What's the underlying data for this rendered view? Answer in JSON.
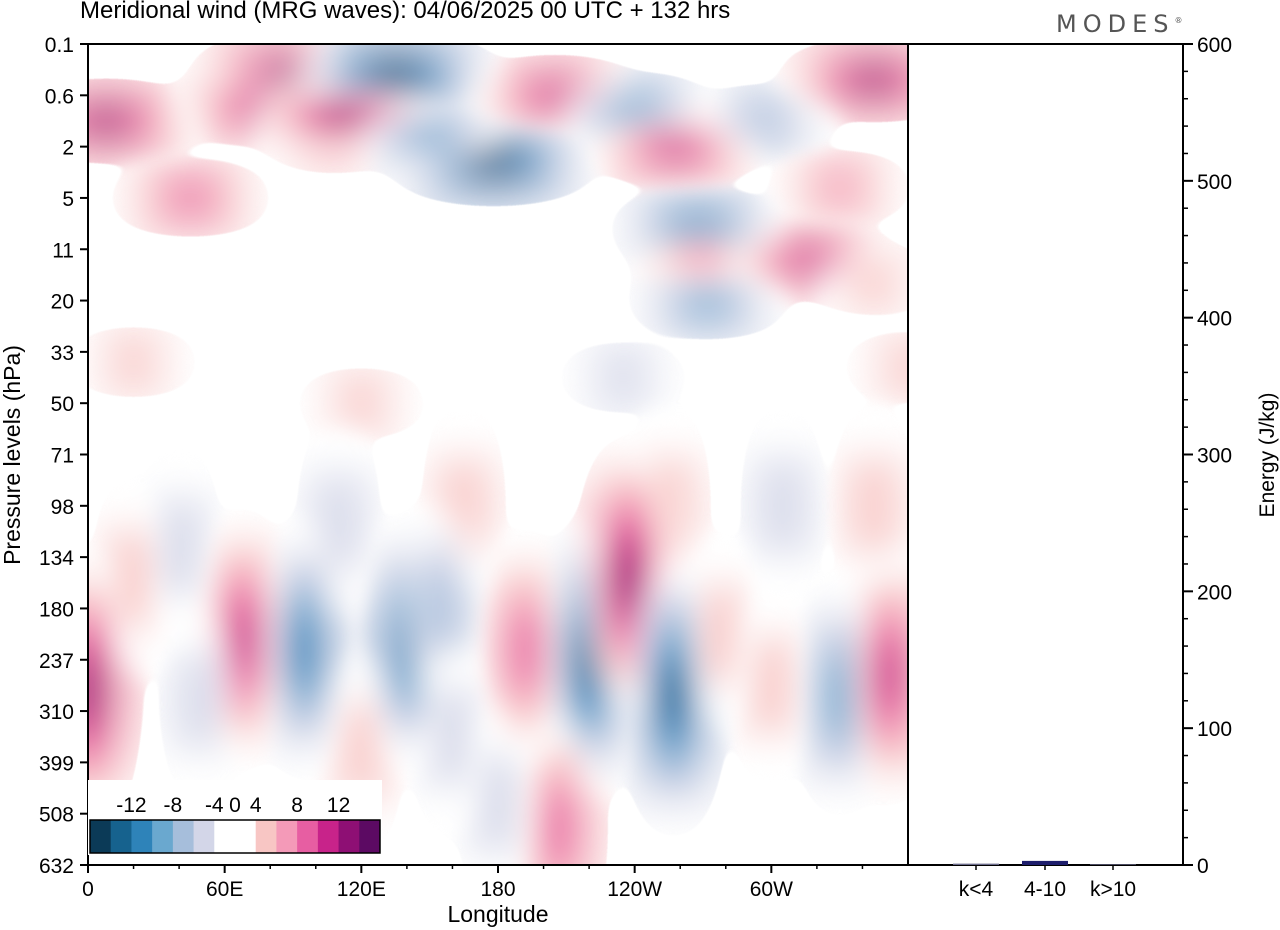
{
  "title": "Meridional wind (MRG waves):  04/06/2025  00 UTC  + 132 hrs",
  "brand": "MODES",
  "brand_mark": "®",
  "chart_data": [
    {
      "type": "heatmap",
      "xlabel": "Longitude",
      "ylabel": "Pressure levels (hPa)",
      "x_ticks": [
        "0",
        "60E",
        "120E",
        "180",
        "120W",
        "60W"
      ],
      "y_ticks": [
        "0.1",
        "0.6",
        "2",
        "5",
        "11",
        "20",
        "33",
        "50",
        "71",
        "98",
        "134",
        "180",
        "237",
        "310",
        "399",
        "508",
        "632"
      ],
      "colorbar": {
        "labels": [
          "-12",
          "-8",
          "-4",
          "0",
          "4",
          "8",
          "12"
        ],
        "levels": [
          -14,
          -12,
          -10,
          -8,
          -6,
          -4,
          -2,
          2,
          4,
          6,
          8,
          10,
          12,
          14
        ],
        "colors": [
          "#0b3a57",
          "#16628e",
          "#2e83b9",
          "#6aa8cf",
          "#a6bedb",
          "#d3d6e8",
          "#ffffff",
          "#ffffff",
          "#f8c6c4",
          "#f49ab8",
          "#e75ea2",
          "#c8238a",
          "#8e0f74",
          "#5c0a63"
        ]
      },
      "features": [
        {
          "lon": 8,
          "lev": 1.5,
          "v": 12
        },
        {
          "lon": 45,
          "lev": 3.0,
          "v": 8
        },
        {
          "lon": 87,
          "lev": 0.6,
          "v": 12
        },
        {
          "lon": 108,
          "lev": 1.8,
          "v": 6
        },
        {
          "lon": 75,
          "lev": 1.2,
          "v": 10
        },
        {
          "lon": 135,
          "lev": 0.6,
          "v": -14
        },
        {
          "lon": 112,
          "lev": 1.4,
          "v": 12
        },
        {
          "lon": 178,
          "lev": 2.3,
          "v": -14
        },
        {
          "lon": 150,
          "lev": 1.8,
          "v": -8
        },
        {
          "lon": 205,
          "lev": 1.0,
          "v": 10
        },
        {
          "lon": 240,
          "lev": 1.3,
          "v": -8
        },
        {
          "lon": 258,
          "lev": 2.0,
          "v": 10
        },
        {
          "lon": 297,
          "lev": 1.5,
          "v": -6
        },
        {
          "lon": 345,
          "lev": 0.7,
          "v": 12
        },
        {
          "lon": 330,
          "lev": 2.8,
          "v": 6
        },
        {
          "lon": 268,
          "lev": 3.6,
          "v": -10
        },
        {
          "lon": 270,
          "lev": 4.2,
          "v": 6
        },
        {
          "lon": 272,
          "lev": 5.0,
          "v": -8
        },
        {
          "lon": 316,
          "lev": 4.2,
          "v": 10
        },
        {
          "lon": 345,
          "lev": 4.6,
          "v": 4
        },
        {
          "lon": 120,
          "lev": 7.0,
          "v": 4
        },
        {
          "lon": 235,
          "lev": 6.5,
          "v": -4
        },
        {
          "lon": 360,
          "lev": 6.3,
          "v": 4
        },
        {
          "lon": 20,
          "lev": 6.2,
          "v": 4
        },
        {
          "lon": 165,
          "lev": 9.0,
          "v": 4
        },
        {
          "lon": 110,
          "lev": 9.3,
          "v": -4
        },
        {
          "lon": 255,
          "lev": 9.0,
          "v": 4
        },
        {
          "lon": 305,
          "lev": 9.0,
          "v": -4
        },
        {
          "lon": 345,
          "lev": 9.0,
          "v": 4
        },
        {
          "lon": 0,
          "lev": 12.6,
          "v": 12
        },
        {
          "lon": 20,
          "lev": 10.4,
          "v": 4
        },
        {
          "lon": 40,
          "lev": 9.8,
          "v": -4
        },
        {
          "lon": 68,
          "lev": 11.6,
          "v": 10
        },
        {
          "lon": 95,
          "lev": 11.8,
          "v": -10
        },
        {
          "lon": 140,
          "lev": 11.7,
          "v": -10
        },
        {
          "lon": 155,
          "lev": 11.0,
          "v": -6
        },
        {
          "lon": 160,
          "lev": 13.5,
          "v": -4
        },
        {
          "lon": 192,
          "lev": 11.8,
          "v": 8
        },
        {
          "lon": 220,
          "lev": 12.0,
          "v": -12
        },
        {
          "lon": 237,
          "lev": 10.4,
          "v": 12
        },
        {
          "lon": 257,
          "lev": 12.7,
          "v": -12
        },
        {
          "lon": 277,
          "lev": 11.5,
          "v": 4
        },
        {
          "lon": 300,
          "lev": 12.5,
          "v": 4
        },
        {
          "lon": 330,
          "lev": 12.7,
          "v": -8
        },
        {
          "lon": 352,
          "lev": 12.3,
          "v": 10
        },
        {
          "lon": 207,
          "lev": 15.3,
          "v": 8
        },
        {
          "lon": 180,
          "lev": 14.8,
          "v": -4
        },
        {
          "lon": 50,
          "lev": 12.8,
          "v": -4
        },
        {
          "lon": 120,
          "lev": 13.8,
          "v": 4
        }
      ]
    },
    {
      "type": "bar",
      "ylabel": "Energy (J/kg)",
      "categories": [
        "k<4",
        "4-10",
        "k>10"
      ],
      "values": [
        1,
        3,
        0.5
      ],
      "colors": [
        "#6b6b8a",
        "#1d1d6b",
        "#6b6b8a"
      ],
      "ylim": [
        0,
        600
      ],
      "y_ticks": [
        0,
        100,
        200,
        300,
        400,
        500,
        600
      ]
    }
  ]
}
